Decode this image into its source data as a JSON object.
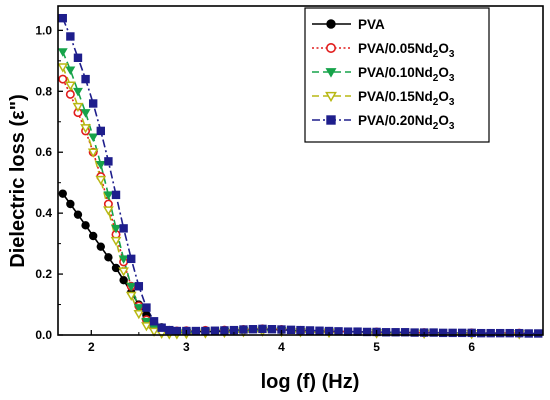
{
  "chart_data": {
    "type": "line",
    "xlabel": "log (f) (Hz)",
    "ylabel": "Dielectric loss (ε\")",
    "xlim": [
      1.65,
      6.75
    ],
    "ylim": [
      0,
      1.08
    ],
    "xticks": [
      "2",
      "3",
      "4",
      "5",
      "6"
    ],
    "yticks": [
      "0.0",
      "0.2",
      "0.4",
      "0.6",
      "0.8",
      "1.0"
    ],
    "grid": false,
    "legend_position": "top-right",
    "series": [
      {
        "name_main": "PVA",
        "name_sub": "",
        "name_tail": "",
        "color": "#000000",
        "marker": "circle-filled",
        "dash": "solid",
        "points": [
          [
            1.7,
            0.464
          ],
          [
            1.78,
            0.43
          ],
          [
            1.86,
            0.395
          ],
          [
            1.94,
            0.36
          ],
          [
            2.02,
            0.325
          ],
          [
            2.1,
            0.29
          ],
          [
            2.18,
            0.255
          ],
          [
            2.26,
            0.22
          ],
          [
            2.34,
            0.18
          ],
          [
            2.42,
            0.14
          ],
          [
            2.5,
            0.1
          ],
          [
            2.58,
            0.065
          ],
          [
            2.66,
            0.04
          ],
          [
            2.74,
            0.025
          ],
          [
            2.82,
            0.016
          ],
          [
            2.9,
            0.013
          ],
          [
            3.0,
            0.012
          ],
          [
            3.2,
            0.011
          ],
          [
            3.4,
            0.012
          ],
          [
            3.6,
            0.016
          ],
          [
            3.8,
            0.019
          ],
          [
            4.0,
            0.017
          ],
          [
            4.2,
            0.014
          ],
          [
            4.5,
            0.012
          ],
          [
            5.0,
            0.009
          ],
          [
            5.5,
            0.007
          ],
          [
            6.0,
            0.006
          ],
          [
            6.5,
            0.005
          ]
        ]
      },
      {
        "name_main": "PVA/0.05Nd",
        "name_sub": "2",
        "name_tail": "O",
        "name_sub2": "3",
        "color": "#e11d1d",
        "marker": "circle-open",
        "dash": "dotted",
        "points": [
          [
            1.7,
            0.84
          ],
          [
            1.78,
            0.79
          ],
          [
            1.86,
            0.73
          ],
          [
            1.94,
            0.67
          ],
          [
            2.02,
            0.6
          ],
          [
            2.1,
            0.52
          ],
          [
            2.18,
            0.43
          ],
          [
            2.26,
            0.33
          ],
          [
            2.34,
            0.24
          ],
          [
            2.42,
            0.16
          ],
          [
            2.5,
            0.095
          ],
          [
            2.58,
            0.05
          ],
          [
            2.66,
            0.028
          ],
          [
            2.74,
            0.018
          ],
          [
            2.82,
            0.014
          ],
          [
            2.9,
            0.013
          ],
          [
            3.0,
            0.014
          ],
          [
            3.2,
            0.015
          ],
          [
            3.4,
            0.016
          ],
          [
            3.6,
            0.018
          ],
          [
            3.8,
            0.02
          ],
          [
            4.0,
            0.018
          ],
          [
            4.2,
            0.015
          ],
          [
            4.5,
            0.012
          ],
          [
            5.0,
            0.01
          ],
          [
            5.5,
            0.008
          ],
          [
            6.0,
            0.007
          ],
          [
            6.5,
            0.006
          ]
        ]
      },
      {
        "name_main": "PVA/0.10Nd",
        "name_sub": "2",
        "name_tail": "O",
        "name_sub2": "3",
        "color": "#16a34a",
        "marker": "triangle-down-filled",
        "dash": "dashed",
        "points": [
          [
            1.7,
            0.93
          ],
          [
            1.78,
            0.87
          ],
          [
            1.86,
            0.8
          ],
          [
            1.94,
            0.73
          ],
          [
            2.02,
            0.65
          ],
          [
            2.1,
            0.56
          ],
          [
            2.18,
            0.46
          ],
          [
            2.26,
            0.35
          ],
          [
            2.34,
            0.25
          ],
          [
            2.42,
            0.16
          ],
          [
            2.5,
            0.09
          ],
          [
            2.58,
            0.045
          ],
          [
            2.66,
            0.022
          ],
          [
            2.74,
            0.012
          ],
          [
            2.82,
            0.009
          ],
          [
            2.9,
            0.008
          ],
          [
            3.0,
            0.009
          ],
          [
            3.2,
            0.01
          ],
          [
            3.4,
            0.012
          ],
          [
            3.6,
            0.014
          ],
          [
            3.8,
            0.016
          ],
          [
            4.0,
            0.014
          ],
          [
            4.2,
            0.012
          ],
          [
            4.5,
            0.01
          ],
          [
            5.0,
            0.008
          ],
          [
            5.5,
            0.006
          ],
          [
            6.0,
            0.005
          ],
          [
            6.5,
            0.004
          ]
        ]
      },
      {
        "name_main": "PVA/0.15Nd",
        "name_sub": "2",
        "name_tail": "O",
        "name_sub2": "3",
        "color": "#b8b814",
        "marker": "triangle-down-open",
        "dash": "dashed",
        "points": [
          [
            1.7,
            0.88
          ],
          [
            1.78,
            0.82
          ],
          [
            1.86,
            0.75
          ],
          [
            1.94,
            0.68
          ],
          [
            2.02,
            0.6
          ],
          [
            2.1,
            0.51
          ],
          [
            2.18,
            0.41
          ],
          [
            2.26,
            0.31
          ],
          [
            2.34,
            0.21
          ],
          [
            2.42,
            0.13
          ],
          [
            2.5,
            0.07
          ],
          [
            2.58,
            0.03
          ],
          [
            2.66,
            0.012
          ],
          [
            2.74,
            0.005
          ],
          [
            2.82,
            0.003
          ],
          [
            2.9,
            0.003
          ],
          [
            3.0,
            0.004
          ],
          [
            3.2,
            0.006
          ],
          [
            3.4,
            0.008
          ],
          [
            3.6,
            0.01
          ],
          [
            3.8,
            0.012
          ],
          [
            4.0,
            0.011
          ],
          [
            4.2,
            0.01
          ],
          [
            4.5,
            0.008
          ],
          [
            5.0,
            0.006
          ],
          [
            5.5,
            0.005
          ],
          [
            6.0,
            0.004
          ],
          [
            6.5,
            0.003
          ]
        ]
      },
      {
        "name_main": "PVA/0.20Nd",
        "name_sub": "2",
        "name_tail": "O",
        "name_sub2": "3",
        "color": "#1e1e8c",
        "marker": "square-filled",
        "dash": "dashdot",
        "points": [
          [
            1.7,
            1.04
          ],
          [
            1.78,
            0.98
          ],
          [
            1.86,
            0.91
          ],
          [
            1.94,
            0.84
          ],
          [
            2.02,
            0.76
          ],
          [
            2.1,
            0.67
          ],
          [
            2.18,
            0.57
          ],
          [
            2.26,
            0.46
          ],
          [
            2.34,
            0.35
          ],
          [
            2.42,
            0.25
          ],
          [
            2.5,
            0.16
          ],
          [
            2.58,
            0.09
          ],
          [
            2.66,
            0.045
          ],
          [
            2.74,
            0.024
          ],
          [
            2.82,
            0.016
          ],
          [
            2.9,
            0.013
          ],
          [
            3.0,
            0.013
          ],
          [
            3.1,
            0.013
          ],
          [
            3.2,
            0.013
          ],
          [
            3.3,
            0.014
          ],
          [
            3.4,
            0.015
          ],
          [
            3.5,
            0.016
          ],
          [
            3.6,
            0.018
          ],
          [
            3.7,
            0.019
          ],
          [
            3.8,
            0.02
          ],
          [
            3.9,
            0.019
          ],
          [
            4.0,
            0.018
          ],
          [
            4.1,
            0.017
          ],
          [
            4.2,
            0.016
          ],
          [
            4.3,
            0.015
          ],
          [
            4.4,
            0.014
          ],
          [
            4.5,
            0.013
          ],
          [
            4.6,
            0.012
          ],
          [
            4.7,
            0.011
          ],
          [
            4.8,
            0.011
          ],
          [
            4.9,
            0.01
          ],
          [
            5.0,
            0.01
          ],
          [
            5.1,
            0.009
          ],
          [
            5.2,
            0.009
          ],
          [
            5.3,
            0.009
          ],
          [
            5.4,
            0.008
          ],
          [
            5.5,
            0.008
          ],
          [
            5.6,
            0.008
          ],
          [
            5.7,
            0.007
          ],
          [
            5.8,
            0.007
          ],
          [
            5.9,
            0.007
          ],
          [
            6.0,
            0.007
          ],
          [
            6.1,
            0.006
          ],
          [
            6.2,
            0.006
          ],
          [
            6.3,
            0.006
          ],
          [
            6.4,
            0.006
          ],
          [
            6.5,
            0.006
          ],
          [
            6.6,
            0.005
          ],
          [
            6.7,
            0.005
          ]
        ]
      }
    ]
  }
}
